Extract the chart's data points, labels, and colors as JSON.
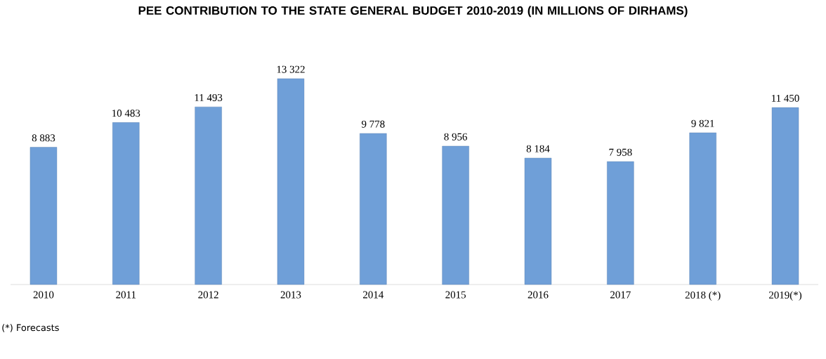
{
  "chart_data": {
    "type": "bar",
    "title": "PEE CONTRIBUTION TO THE STATE GENERAL BUDGET 2010-2019 (IN MILLIONS OF DIRHAMS)",
    "categories": [
      "2010",
      "2011",
      "2012",
      "2013",
      "2014",
      "2015",
      "2016",
      "2017",
      "2018 (*)",
      "2019(*)"
    ],
    "values": [
      8883,
      10483,
      11493,
      13322,
      9778,
      8956,
      8184,
      7958,
      9821,
      11450
    ],
    "value_labels": [
      "8 883",
      "10 483",
      "11 493",
      "13 322",
      "9 778",
      "8 956",
      "8 184",
      "7 958",
      "9 821",
      "11 450"
    ],
    "color": "#6f9fd8",
    "annotations": [
      "(*) Forecasts"
    ]
  }
}
